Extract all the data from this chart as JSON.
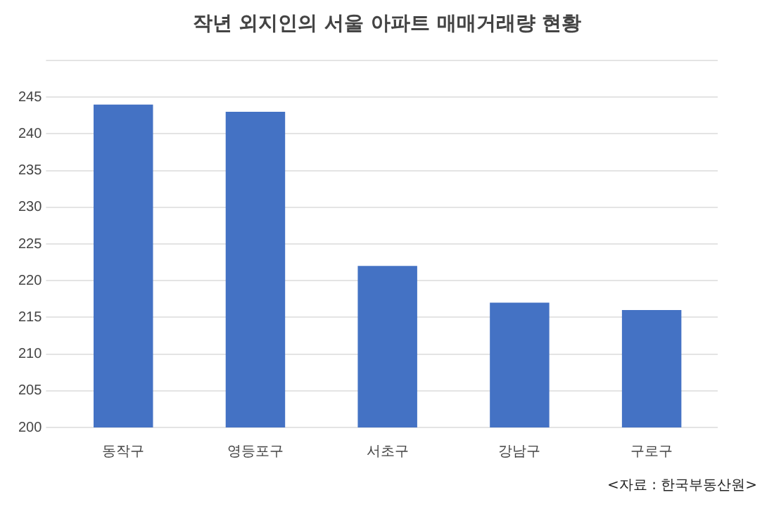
{
  "chart_data": {
    "type": "bar",
    "title": "작년 외지인의 서울 아파트 매매거래량 현황",
    "categories": [
      "동작구",
      "영등포구",
      "서초구",
      "강남구",
      "구로구"
    ],
    "values": [
      244,
      243,
      222,
      217,
      216
    ],
    "color": "#4472c4",
    "ylim": [
      200,
      250
    ],
    "yticks": [
      200,
      205,
      210,
      215,
      220,
      225,
      230,
      235,
      240,
      245,
      {
        "value": 250,
        "label": null
      }
    ],
    "grid": "y",
    "annotations": [
      "<자료 : 한국부동산원>"
    ]
  }
}
